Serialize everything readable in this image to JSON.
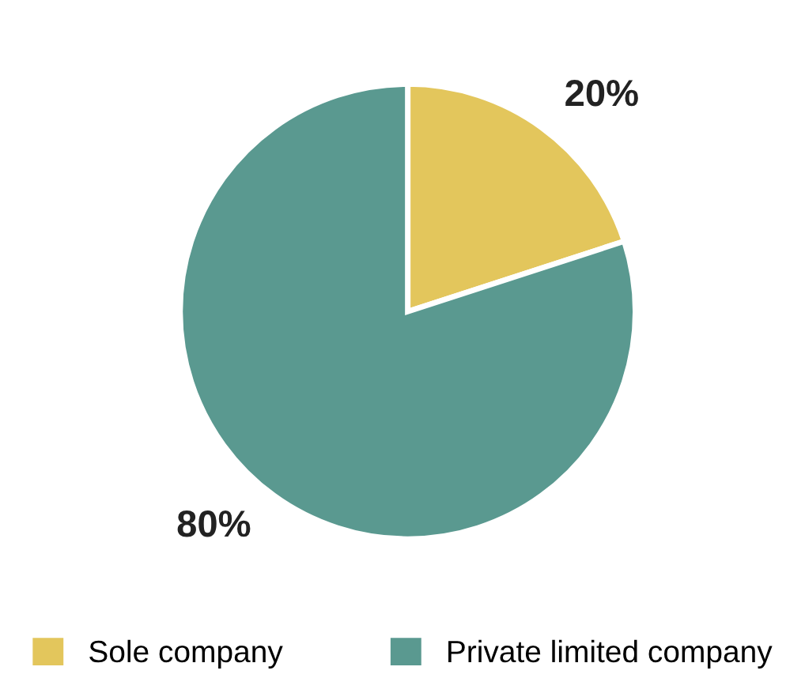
{
  "chart_data": {
    "type": "pie",
    "categories": [
      "Sole company",
      "Private limited company"
    ],
    "values": [
      20,
      80
    ],
    "colors": [
      "#e3c65c",
      "#5a9990"
    ],
    "value_labels": [
      "20%",
      "80%"
    ],
    "legend": "bottom"
  }
}
